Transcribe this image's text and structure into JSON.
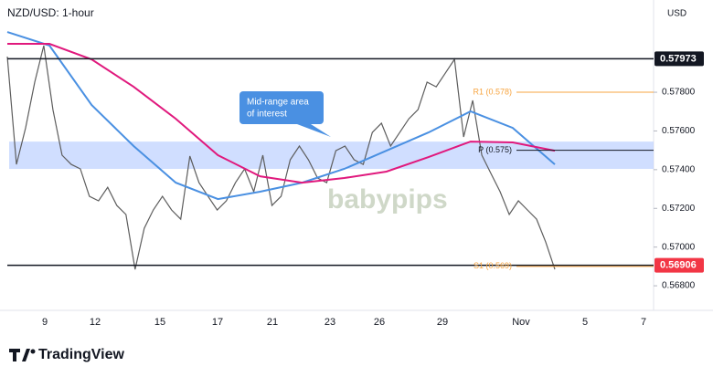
{
  "chart_data": {
    "type": "line",
    "title": "NZD/USD: 1-hour",
    "currency": "USD",
    "ylim": [
      0.56673,
      0.58253
    ],
    "yticks": [
      {
        "value": 0.568,
        "label": "0.56800"
      },
      {
        "value": 0.57,
        "label": "0.57000"
      },
      {
        "value": 0.572,
        "label": "0.57200"
      },
      {
        "value": 0.574,
        "label": "0.57400"
      },
      {
        "value": 0.576,
        "label": "0.57600"
      },
      {
        "value": 0.578,
        "label": "0.57800"
      }
    ],
    "xtick_labels": [
      "9",
      "12",
      "15",
      "17",
      "21",
      "23",
      "26",
      "29",
      "Nov",
      "5",
      "7"
    ],
    "series": [
      {
        "color": "#5d5d5d",
        "values": [
          0.57984,
          0.57427,
          0.57616,
          0.57852,
          0.58041,
          0.5771,
          0.57475,
          0.57427,
          0.57404,
          0.57262,
          0.57239,
          0.57309,
          0.57215,
          0.57168,
          0.56885,
          0.57097,
          0.57192,
          0.57262,
          0.57192,
          0.57144,
          0.5747,
          0.57333,
          0.57262,
          0.57192,
          0.57239,
          0.57333,
          0.57404,
          0.57286,
          0.57475,
          0.57215,
          0.57262,
          0.57451,
          0.57522,
          0.57451,
          0.57357,
          0.57333,
          0.57498,
          0.57522,
          0.57451,
          0.57427,
          0.57592,
          0.5764,
          0.57522,
          0.57592,
          0.57663,
          0.5771,
          0.57852,
          0.57828,
          0.57899,
          0.5797,
          0.57569,
          0.57758,
          0.57475,
          0.5738,
          0.57286,
          0.57168,
          0.57239,
          0.57192,
          0.57144,
          0.57026,
          0.56885
        ]
      },
      {
        "color": "#4a90e2",
        "values": [
          0.58111,
          0.58041,
          0.57734,
          0.57522,
          0.57333,
          0.57248,
          0.57286,
          0.57333,
          0.57404,
          0.57498,
          0.57592,
          0.57701,
          0.57616,
          0.57427
        ]
      },
      {
        "color": "#e0197d",
        "values": [
          0.5805,
          0.5805,
          0.5797,
          0.57828,
          0.57663,
          0.57475,
          0.57366,
          0.57333,
          0.57357,
          0.5739,
          0.57465,
          0.57545,
          0.57541,
          0.57498
        ]
      }
    ],
    "zone": [
      0.57404,
      0.57545
    ],
    "levels": [
      {
        "value": 0.57973,
        "label": "0.57973",
        "color": "#131722"
      },
      {
        "value": 0.56906,
        "label": "0.56906",
        "color": "#f23645"
      }
    ],
    "pivots": [
      {
        "value": 0.578,
        "label": "R1 (0.578)",
        "color": "#f7a541"
      },
      {
        "value": 0.575,
        "label": "P (0.575)",
        "color": "#131722"
      },
      {
        "value": 0.569,
        "label": "S1 (0.569)",
        "color": "#f7a541"
      }
    ],
    "annotation": [
      "Mid-range area",
      "of interest"
    ],
    "watermark": "babypips",
    "brand": "TradingView"
  }
}
